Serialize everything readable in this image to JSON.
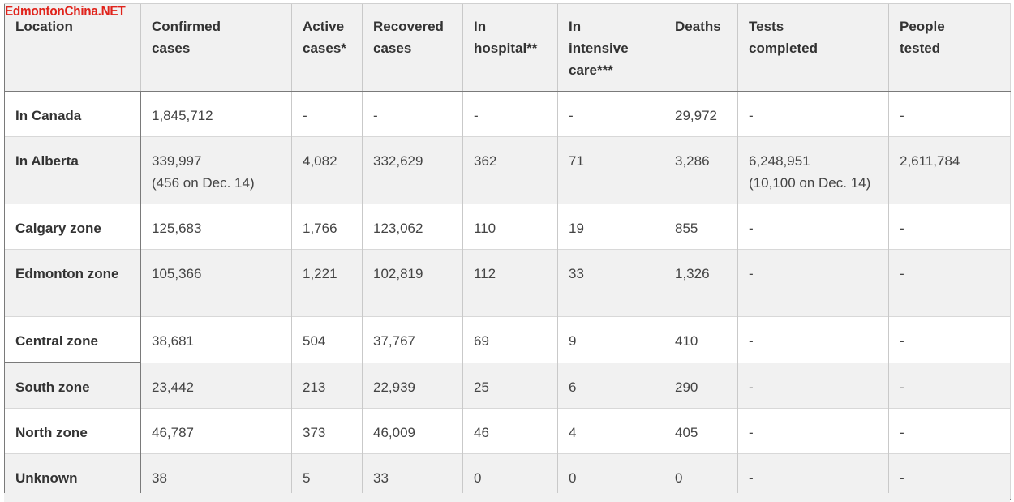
{
  "watermark": "EdmontonChina.NET",
  "headers": [
    "Location",
    "Confirmed cases",
    "Active cases*",
    "Recovered cases",
    "In hospital**",
    "In intensive care***",
    "Deaths",
    "Tests completed",
    "People tested"
  ],
  "header_lines": [
    [
      "Location"
    ],
    [
      "Confirmed",
      "cases"
    ],
    [
      "Active",
      "cases*"
    ],
    [
      "Recovered",
      "cases"
    ],
    [
      "In",
      "hospital**"
    ],
    [
      "In",
      "intensive",
      "care***"
    ],
    [
      "Deaths"
    ],
    [
      "Tests",
      "completed"
    ],
    [
      "People",
      "tested"
    ]
  ],
  "rows": [
    {
      "location": "In Canada",
      "confirmed": "1,845,712",
      "confirmed_note": "",
      "active": "-",
      "recovered": "-",
      "hospital": "-",
      "icu": "-",
      "deaths": "29,972",
      "tests": "-",
      "tests_note": "",
      "people": "-"
    },
    {
      "location": "In Alberta",
      "confirmed": "339,997",
      "confirmed_note": "(456 on Dec. 14)",
      "active": "4,082",
      "recovered": "332,629",
      "hospital": "362",
      "icu": "71",
      "deaths": "3,286",
      "tests": "6,248,951",
      "tests_note": "(10,100 on Dec. 14)",
      "people": "2,611,784"
    },
    {
      "location": "Calgary zone",
      "confirmed": "125,683",
      "confirmed_note": "",
      "active": "1,766",
      "recovered": "123,062",
      "hospital": "110",
      "icu": "19",
      "deaths": "855",
      "tests": "-",
      "tests_note": "",
      "people": "-"
    },
    {
      "location": "Edmonton zone",
      "confirmed": "105,366",
      "confirmed_note": "",
      "active": "1,221",
      "recovered": "102,819",
      "hospital": "112",
      "icu": "33",
      "deaths": "1,326",
      "tests": "-",
      "tests_note": "",
      "people": "-"
    },
    {
      "location": "Central zone",
      "confirmed": "38,681",
      "confirmed_note": "",
      "active": "504",
      "recovered": "37,767",
      "hospital": "69",
      "icu": "9",
      "deaths": "410",
      "tests": "-",
      "tests_note": "",
      "people": "-"
    },
    {
      "location": "South zone",
      "confirmed": "23,442",
      "confirmed_note": "",
      "active": "213",
      "recovered": "22,939",
      "hospital": "25",
      "icu": "6",
      "deaths": "290",
      "tests": "-",
      "tests_note": "",
      "people": "-"
    },
    {
      "location": "North zone",
      "confirmed": "46,787",
      "confirmed_note": "",
      "active": "373",
      "recovered": "46,009",
      "hospital": "46",
      "icu": "4",
      "deaths": "405",
      "tests": "-",
      "tests_note": "",
      "people": "-"
    },
    {
      "location": "Unknown",
      "confirmed": "38",
      "confirmed_note": "",
      "active": "5",
      "recovered": "33",
      "hospital": "0",
      "icu": "0",
      "deaths": "0",
      "tests": "-",
      "tests_note": "",
      "people": "-"
    }
  ],
  "colors": {
    "watermark": "#e0231b",
    "header_bg": "#f1f1f1",
    "stripe_bg": "#f1f1f1",
    "text": "#333333"
  }
}
